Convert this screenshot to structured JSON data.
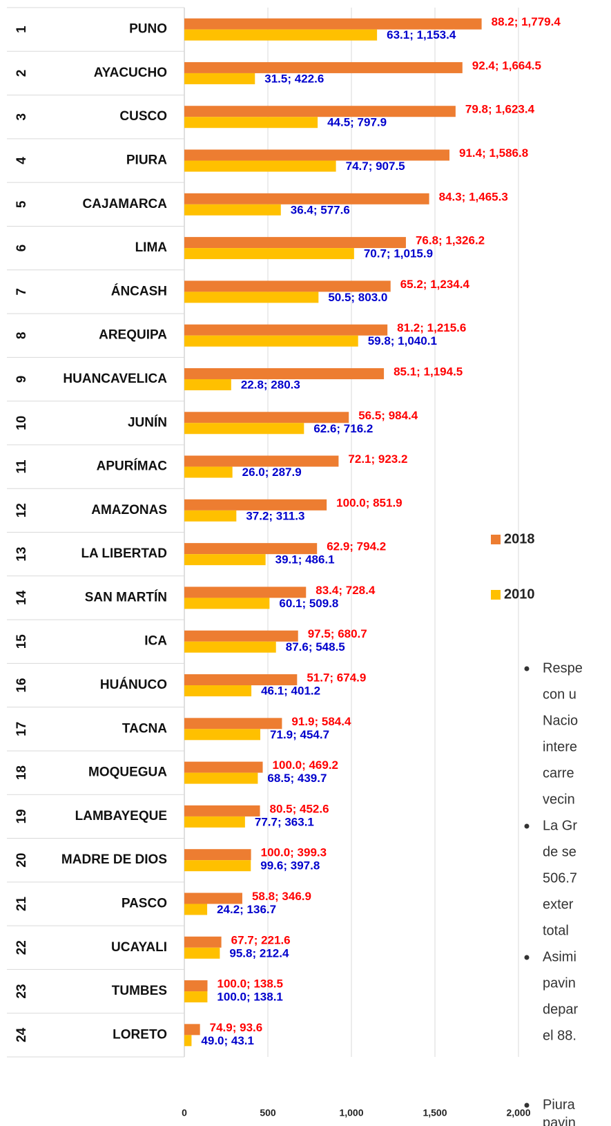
{
  "chart_data": {
    "type": "bar",
    "orientation": "horizontal",
    "ranks": [
      1,
      2,
      3,
      4,
      5,
      6,
      7,
      8,
      9,
      10,
      11,
      12,
      13,
      14,
      15,
      16,
      17,
      18,
      19,
      20,
      21,
      22,
      23,
      24
    ],
    "categories": [
      "PUNO",
      "AYACUCHO",
      "CUSCO",
      "PIURA",
      "CAJAMARCA",
      "LIMA",
      "ÁNCASH",
      "AREQUIPA",
      "HUANCAVELICA",
      "JUNÍN",
      "APURÍMAC",
      "AMAZONAS",
      "LA LIBERTAD",
      "SAN MARTÍN",
      "ICA",
      "HUÁNUCO",
      "TACNA",
      "MOQUEGUA",
      "LAMBAYEQUE",
      "MADRE DE DIOS",
      "PASCO",
      "UCAYALI",
      "TUMBES",
      "LORETO"
    ],
    "series": [
      {
        "name": "2018",
        "color": "#ED7D31",
        "label_color": "#FF0000",
        "values": [
          1779.4,
          1664.5,
          1623.4,
          1586.8,
          1465.3,
          1326.2,
          1234.4,
          1215.6,
          1194.5,
          984.4,
          923.2,
          851.9,
          794.2,
          728.4,
          680.7,
          674.9,
          584.4,
          469.2,
          452.6,
          399.3,
          346.9,
          221.6,
          138.5,
          93.6
        ],
        "value_labels": [
          "88.2; 1,779.4",
          "92.4; 1,664.5",
          "79.8; 1,623.4",
          "91.4; 1,586.8",
          "84.3; 1,465.3",
          "76.8; 1,326.2",
          "65.2; 1,234.4",
          "81.2; 1,215.6",
          "85.1; 1,194.5",
          "56.5; 984.4",
          "72.1; 923.2",
          "100.0; 851.9",
          "62.9; 794.2",
          "83.4; 728.4",
          "97.5; 680.7",
          "51.7; 674.9",
          "91.9; 584.4",
          "100.0; 469.2",
          "80.5; 452.6",
          "100.0; 399.3",
          "58.8; 346.9",
          "67.7; 221.6",
          "100.0; 138.5",
          "74.9; 93.6"
        ]
      },
      {
        "name": "2010",
        "color": "#FFC000",
        "label_color": "#0000CC",
        "values": [
          1153.4,
          422.6,
          797.9,
          907.5,
          577.6,
          1015.9,
          803.0,
          1040.1,
          280.3,
          716.2,
          287.9,
          311.3,
          486.1,
          509.8,
          548.5,
          401.2,
          454.7,
          439.7,
          363.1,
          397.8,
          136.7,
          212.4,
          138.1,
          43.1
        ],
        "value_labels": [
          "63.1; 1,153.4",
          "31.5; 422.6",
          "44.5; 797.9",
          "74.7; 907.5",
          "36.4; 577.6",
          "70.7; 1,015.9",
          "50.5; 803.0",
          "59.8; 1,040.1",
          "22.8; 280.3",
          "62.6; 716.2",
          "26.0; 287.9",
          "37.2; 311.3",
          "39.1; 486.1",
          "60.1; 509.8",
          "87.6; 548.5",
          "46.1; 401.2",
          "71.9; 454.7",
          "68.5; 439.7",
          "77.7; 363.1",
          "99.6; 397.8",
          "24.2; 136.7",
          "95.8; 212.4",
          "100.0; 138.1",
          "49.0; 43.1"
        ]
      }
    ],
    "xlim": [
      0,
      2000
    ],
    "xticks": [
      0,
      500,
      {
        "value": 1000,
        "label": "1,000"
      },
      {
        "value": 1500,
        "label": "1,500"
      },
      {
        "value": 2000,
        "label": "2,000"
      }
    ],
    "grid": true
  },
  "notes": [
    {
      "lines": [
        "Respe",
        "con u",
        "Nacio",
        "intere",
        "carre",
        "vecin"
      ]
    },
    {
      "lines": [
        "La Gr",
        "de se",
        "506.7",
        "exter",
        "total"
      ]
    },
    {
      "lines": [
        "Asimi",
        "pavin",
        "depar",
        "el 88."
      ]
    },
    {
      "lines": [
        "Piura",
        "pavin"
      ]
    }
  ]
}
